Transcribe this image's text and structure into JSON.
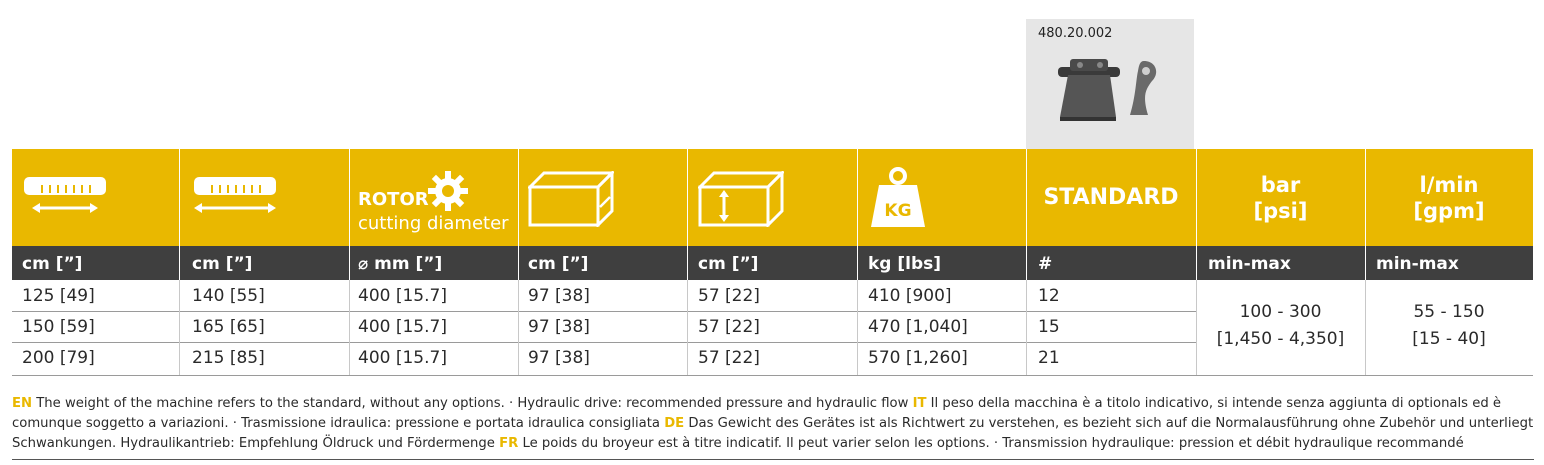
{
  "part": {
    "code": "480.20.002"
  },
  "header": {
    "rotor_title": "ROTOR",
    "rotor_sub": "cutting diameter",
    "standard": "STANDARD",
    "bar_l1": "bar",
    "bar_l2": "[psi]",
    "lmin_l1": "l/min",
    "lmin_l2": "[gpm]",
    "kg_label": "KG"
  },
  "units": [
    "cm [”]",
    "cm [”]",
    "⌀ mm [”]",
    "cm [”]",
    "cm [”]",
    "kg [lbs]",
    "#",
    "min-max",
    "min-max"
  ],
  "rows": [
    [
      "125 [49]",
      "140 [55]",
      "400 [15.7]",
      "97 [38]",
      "57 [22]",
      "410 [900]",
      "12"
    ],
    [
      "150 [59]",
      "165 [65]",
      "400 [15.7]",
      "97 [38]",
      "57 [22]",
      "470 [1,040]",
      "15"
    ],
    [
      "200 [79]",
      "215 [85]",
      "400 [15.7]",
      "97 [38]",
      "57 [22]",
      "570 [1,260]",
      "21"
    ]
  ],
  "pressure": {
    "line1": "100 - 300",
    "line2": "[1,450 - 4,350]"
  },
  "flow": {
    "line1": "55 - 150",
    "line2": "[15 - 40]"
  },
  "footer": {
    "en_tag": "EN",
    "en_text": " The weight of the machine refers to the standard, without any options. · Hydraulic drive: recommended pressure and hydraulic flow ",
    "it_tag": "IT",
    "it_text": " Il peso della macchina è a titolo indicativo, si intende senza aggiunta di optionals ed è comunque soggetto a variazioni. · Trasmissione idraulica: pressione e portata idraulica consigliata ",
    "de_tag": "DE",
    "de_text": " Das Gewicht des Gerätes ist als Richtwert zu verstehen, es bezieht sich auf die Normalausführung ohne Zubehör und unterliegt Schwankungen. Hydraulikantrieb: Empfehlung Öldruck und Fördermenge ",
    "fr_tag": "FR",
    "fr_text": " Le poids du broyeur est à titre indicatif. Il peut varier selon les options. · Transmission hydraulique: pression et débit hydraulique recommandé"
  }
}
